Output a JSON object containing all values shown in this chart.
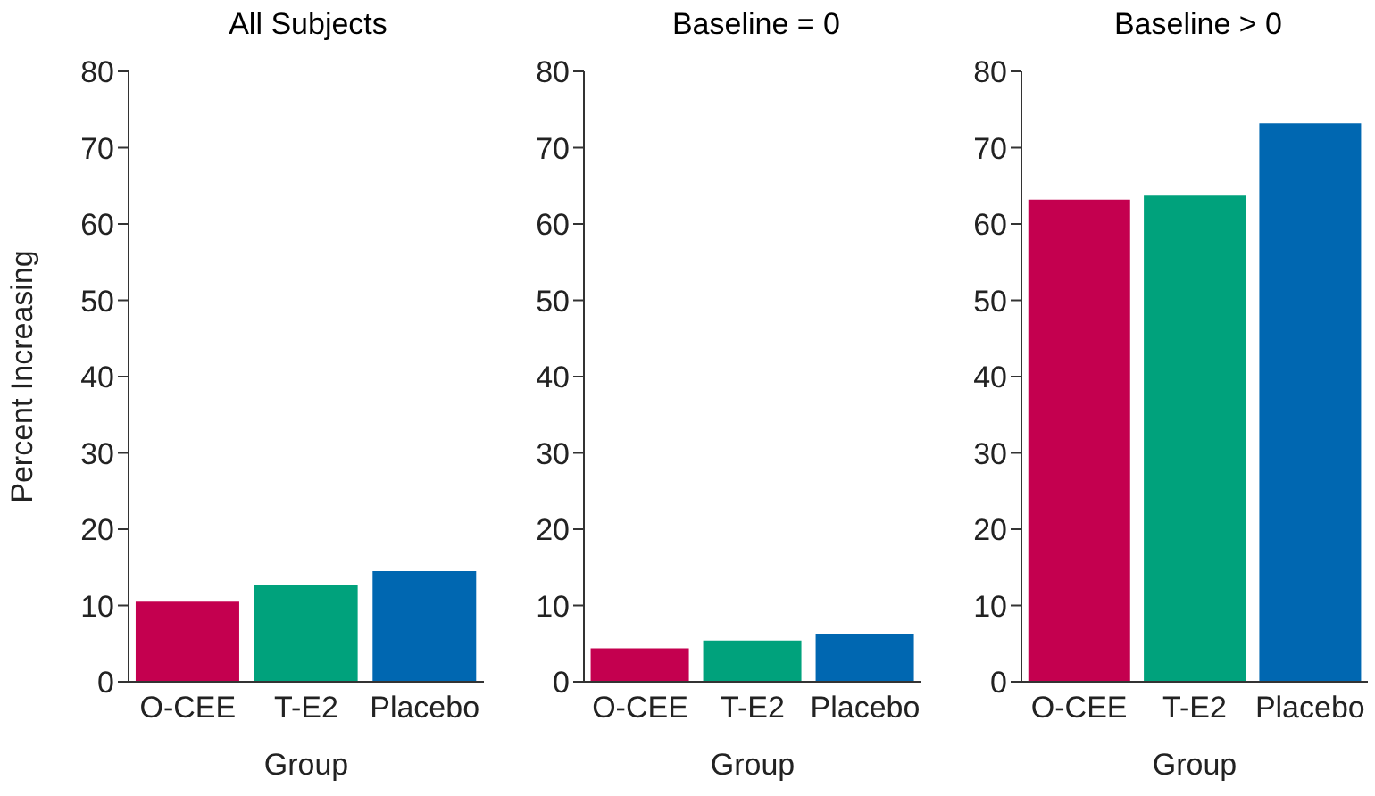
{
  "chart_data": [
    {
      "type": "bar",
      "title": "All Subjects",
      "xlabel": "Group",
      "ylabel": "Percent Increasing",
      "categories": [
        "O-CEE",
        "T-E2",
        "Placebo"
      ],
      "values": [
        10.5,
        12.7,
        14.5
      ],
      "colors": [
        "#c4004f",
        "#00a27c",
        "#0067b1"
      ],
      "ylim": [
        0,
        80
      ],
      "yticks": [
        0,
        10,
        20,
        30,
        40,
        50,
        60,
        70,
        80
      ],
      "grid": false
    },
    {
      "type": "bar",
      "title": "Baseline = 0",
      "xlabel": "Group",
      "categories": [
        "O-CEE",
        "T-E2",
        "Placebo"
      ],
      "values": [
        4.4,
        5.4,
        6.3
      ],
      "colors": [
        "#c4004f",
        "#00a27c",
        "#0067b1"
      ],
      "ylim": [
        0,
        80
      ],
      "yticks": [
        0,
        10,
        20,
        30,
        40,
        50,
        60,
        70,
        80
      ],
      "grid": false
    },
    {
      "type": "bar",
      "title": "Baseline > 0",
      "xlabel": "Group",
      "categories": [
        "O-CEE",
        "T-E2",
        "Placebo"
      ],
      "values": [
        63.2,
        63.7,
        73.2
      ],
      "colors": [
        "#c4004f",
        "#00a27c",
        "#0067b1"
      ],
      "ylim": [
        0,
        80
      ],
      "yticks": [
        0,
        10,
        20,
        30,
        40,
        50,
        60,
        70,
        80
      ],
      "grid": false
    }
  ]
}
